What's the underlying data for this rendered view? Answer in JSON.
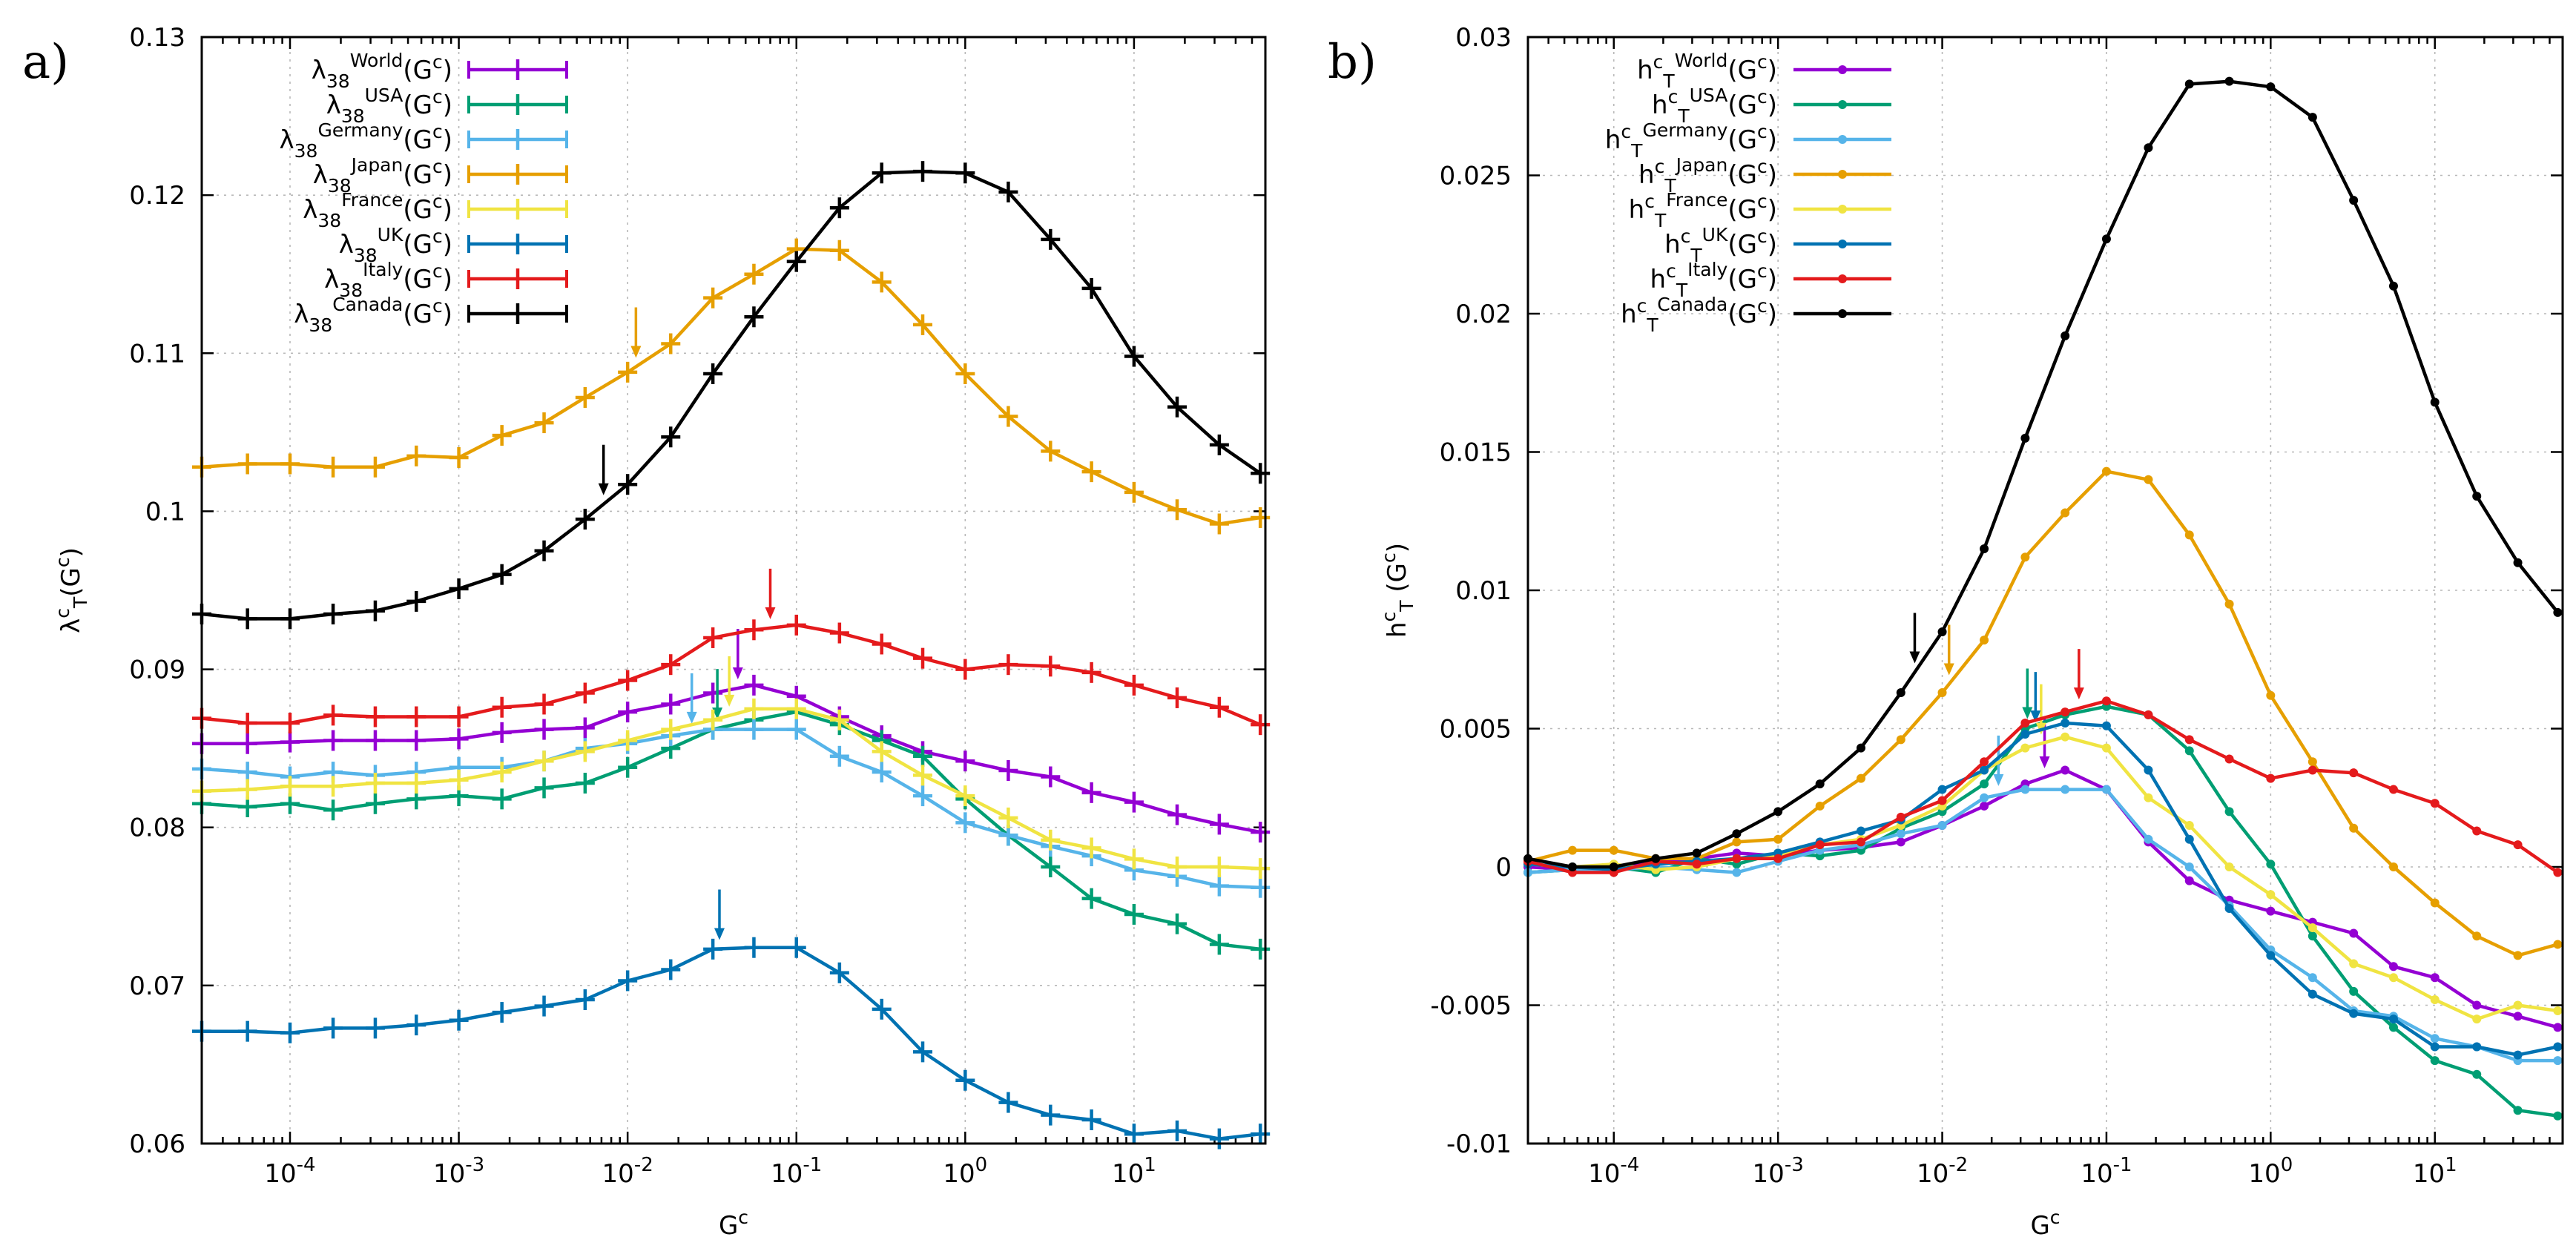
{
  "chart_data": [
    {
      "panel_label": "a)",
      "type": "line",
      "xlabel": "G",
      "xlabel_sup": "c",
      "ylabel": "λ",
      "ylabel_sup": "c",
      "ylabel_sub": "T",
      "ylabel_tail": "(G",
      "ylabel_tail_sup": "c",
      "ylabel_close": ")",
      "x_scale": "log",
      "xlim": [
        3e-05,
        60
      ],
      "ylim": [
        0.06,
        0.13
      ],
      "yticks": [
        "0.06",
        "0.07",
        "0.08",
        "0.09",
        "0.1",
        "0.11",
        "0.12",
        "0.13"
      ],
      "xticks": [
        {
          "base": "10",
          "exp": "-4"
        },
        {
          "base": "10",
          "exp": "-3"
        },
        {
          "base": "10",
          "exp": "-2"
        },
        {
          "base": "10",
          "exp": "-1"
        },
        {
          "base": "10",
          "exp": "0"
        },
        {
          "base": "10",
          "exp": "1"
        }
      ],
      "marker": "plus",
      "x": [
        3e-05,
        5.6e-05,
        0.0001,
        0.00018,
        0.00032,
        0.00056,
        0.001,
        0.0018,
        0.0032,
        0.0056,
        0.01,
        0.018,
        0.032,
        0.056,
        0.1,
        0.18,
        0.32,
        0.56,
        1,
        1.8,
        3.2,
        5.6,
        10,
        18,
        32,
        56
      ],
      "series": [
        {
          "name": "World",
          "color": "#9400d3",
          "legend": {
            "pre": "λ",
            "sub": "38",
            "sup": "World",
            "tail": "(G",
            "tail_sup": "c",
            "close": ")"
          },
          "values": [
            0.0853,
            0.0853,
            0.0854,
            0.0855,
            0.0855,
            0.0855,
            0.0856,
            0.086,
            0.0862,
            0.0863,
            0.0873,
            0.0878,
            0.0885,
            0.089,
            0.0883,
            0.087,
            0.0858,
            0.0848,
            0.0842,
            0.0836,
            0.0832,
            0.0822,
            0.0816,
            0.0808,
            0.0802,
            0.0797
          ],
          "arrow_x": 0.045
        },
        {
          "name": "USA",
          "color": "#009e73",
          "legend": {
            "pre": "λ",
            "sub": "38",
            "sup": "USA",
            "tail": "(G",
            "tail_sup": "c",
            "close": ")"
          },
          "values": [
            0.0815,
            0.0813,
            0.0815,
            0.0811,
            0.0815,
            0.0818,
            0.082,
            0.0818,
            0.0825,
            0.0828,
            0.0838,
            0.085,
            0.0862,
            0.0868,
            0.0873,
            0.0865,
            0.0855,
            0.0845,
            0.0818,
            0.0795,
            0.0775,
            0.0755,
            0.0745,
            0.0739,
            0.0726,
            0.0723
          ],
          "arrow_x": 0.034
        },
        {
          "name": "Germany",
          "color": "#56b4e9",
          "legend": {
            "pre": "λ",
            "sub": "38",
            "sup": "Germany",
            "tail": "(G",
            "tail_sup": "c",
            "close": ")"
          },
          "values": [
            0.0837,
            0.0835,
            0.0832,
            0.0835,
            0.0833,
            0.0835,
            0.0838,
            0.0838,
            0.0842,
            0.085,
            0.0853,
            0.0858,
            0.0862,
            0.0862,
            0.0862,
            0.0845,
            0.0835,
            0.082,
            0.0803,
            0.0795,
            0.0788,
            0.0782,
            0.0773,
            0.0769,
            0.0763,
            0.0762
          ],
          "arrow_x": 0.024
        },
        {
          "name": "Japan",
          "color": "#e69f00",
          "legend": {
            "pre": "λ",
            "sub": "38",
            "sup": "Japan",
            "tail": "(G",
            "tail_sup": "c",
            "close": ")"
          },
          "values": [
            0.1028,
            0.103,
            0.103,
            0.1028,
            0.1028,
            0.1035,
            0.1034,
            0.1048,
            0.1056,
            0.1072,
            0.1088,
            0.1106,
            0.1135,
            0.115,
            0.1166,
            0.1165,
            0.1145,
            0.1118,
            0.1087,
            0.106,
            0.1038,
            0.1025,
            0.1012,
            0.1001,
            0.0992,
            0.0996
          ],
          "arrow_x": 0.0112
        },
        {
          "name": "France",
          "color": "#f0e442",
          "legend": {
            "pre": "λ",
            "sub": "38",
            "sup": "France",
            "tail": "(G",
            "tail_sup": "c",
            "close": ")"
          },
          "values": [
            0.0823,
            0.0824,
            0.0826,
            0.0826,
            0.0828,
            0.0828,
            0.083,
            0.0835,
            0.0842,
            0.0848,
            0.0855,
            0.0862,
            0.0868,
            0.0875,
            0.0875,
            0.0868,
            0.0848,
            0.0833,
            0.082,
            0.0806,
            0.0792,
            0.0787,
            0.078,
            0.0775,
            0.0775,
            0.0774
          ],
          "arrow_x": 0.04
        },
        {
          "name": "UK",
          "color": "#0072b2",
          "legend": {
            "pre": "λ",
            "sub": "38",
            "sup": "UK",
            "tail": "(G",
            "tail_sup": "c",
            "close": ")"
          },
          "values": [
            0.0671,
            0.0671,
            0.067,
            0.0673,
            0.0673,
            0.0675,
            0.0678,
            0.0683,
            0.0687,
            0.0691,
            0.0703,
            0.071,
            0.0723,
            0.0724,
            0.0724,
            0.0708,
            0.0685,
            0.0658,
            0.064,
            0.0626,
            0.0618,
            0.0615,
            0.0606,
            0.0608,
            0.0603,
            0.0606
          ],
          "arrow_x": 0.035
        },
        {
          "name": "Italy",
          "color": "#e41a1c",
          "legend": {
            "pre": "λ",
            "sub": "38",
            "sup": "Italy",
            "tail": "(G",
            "tail_sup": "c",
            "close": ")"
          },
          "values": [
            0.0869,
            0.0866,
            0.0866,
            0.0871,
            0.087,
            0.087,
            0.087,
            0.0876,
            0.0878,
            0.0885,
            0.0893,
            0.0903,
            0.092,
            0.0925,
            0.0928,
            0.0923,
            0.0916,
            0.0907,
            0.09,
            0.0903,
            0.0902,
            0.0898,
            0.089,
            0.0882,
            0.0876,
            0.0865
          ],
          "arrow_x": 0.07
        },
        {
          "name": "Canada",
          "color": "#000000",
          "legend": {
            "pre": "λ",
            "sub": "38",
            "sup": "Canada",
            "tail": "(G",
            "tail_sup": "c",
            "close": ")"
          },
          "values": [
            0.0935,
            0.0932,
            0.0932,
            0.0935,
            0.0937,
            0.0943,
            0.0951,
            0.096,
            0.0975,
            0.0995,
            0.1017,
            0.1047,
            0.1087,
            0.1123,
            0.1158,
            0.1192,
            0.1214,
            0.1215,
            0.1214,
            0.1202,
            0.1172,
            0.1141,
            0.1098,
            0.1066,
            0.1042,
            0.1024
          ],
          "arrow_x": 0.0072
        }
      ]
    },
    {
      "panel_label": "b)",
      "type": "line",
      "xlabel": "G",
      "xlabel_sup": "c",
      "ylabel": "h",
      "ylabel_sup": "c",
      "ylabel_sub": "T",
      "ylabel_tail": " (G",
      "ylabel_tail_sup": "c",
      "ylabel_close": ")",
      "x_scale": "log",
      "xlim": [
        3e-05,
        60
      ],
      "ylim": [
        -0.01,
        0.03
      ],
      "yticks": [
        "-0.01",
        "-0.005",
        "0",
        "0.005",
        "0.01",
        "0.015",
        "0.02",
        "0.025",
        "0.03"
      ],
      "xticks": [
        {
          "base": "10",
          "exp": "-4"
        },
        {
          "base": "10",
          "exp": "-3"
        },
        {
          "base": "10",
          "exp": "-2"
        },
        {
          "base": "10",
          "exp": "-1"
        },
        {
          "base": "10",
          "exp": "0"
        },
        {
          "base": "10",
          "exp": "1"
        }
      ],
      "marker": "dot",
      "x": [
        3e-05,
        5.6e-05,
        0.0001,
        0.00018,
        0.00032,
        0.00056,
        0.001,
        0.0018,
        0.0032,
        0.0056,
        0.01,
        0.018,
        0.032,
        0.056,
        0.1,
        0.18,
        0.32,
        0.56,
        1,
        1.8,
        3.2,
        5.6,
        10,
        18,
        32,
        56
      ],
      "series": [
        {
          "name": "World",
          "color": "#9400d3",
          "legend": {
            "pre": "h",
            "sup": "c",
            "sub": "T",
            "sup2": "World",
            "tail": "(G",
            "tail_sup": "c",
            "close": ")"
          },
          "values": [
            0.0,
            -0.0001,
            0.0,
            0.0002,
            0.0003,
            0.0005,
            0.0004,
            0.0006,
            0.0007,
            0.0009,
            0.0015,
            0.0022,
            0.003,
            0.0035,
            0.0028,
            0.0009,
            -0.0005,
            -0.0012,
            -0.0016,
            -0.002,
            -0.0024,
            -0.0036,
            -0.004,
            -0.005,
            -0.0054,
            -0.0058
          ],
          "arrow_x": 0.042
        },
        {
          "name": "USA",
          "color": "#009e73",
          "legend": {
            "pre": "h",
            "sup": "c",
            "sub": "T",
            "sup2": "USA",
            "tail": "(G",
            "tail_sup": "c",
            "close": ")"
          },
          "values": [
            -0.0002,
            -0.0001,
            0.0,
            -0.0002,
            0.0003,
            0.0001,
            0.0005,
            0.0004,
            0.0006,
            0.0014,
            0.002,
            0.003,
            0.005,
            0.0055,
            0.0058,
            0.0055,
            0.0042,
            0.002,
            0.0001,
            -0.0025,
            -0.0045,
            -0.0058,
            -0.007,
            -0.0075,
            -0.0088,
            -0.009
          ],
          "arrow_x": 0.033
        },
        {
          "name": "Germany",
          "color": "#56b4e9",
          "legend": {
            "pre": "h",
            "sup": "c",
            "sub": "T",
            "sup2": "Germany",
            "tail": "(G",
            "tail_sup": "c",
            "close": ")"
          },
          "values": [
            -0.0002,
            -0.0001,
            -0.0001,
            0.0,
            -0.0001,
            -0.0002,
            0.0002,
            0.0006,
            0.0008,
            0.0012,
            0.0015,
            0.0025,
            0.0028,
            0.0028,
            0.0028,
            0.001,
            0.0,
            -0.0014,
            -0.003,
            -0.004,
            -0.0052,
            -0.0054,
            -0.0062,
            -0.0065,
            -0.007,
            -0.007
          ],
          "arrow_x": 0.022
        },
        {
          "name": "Japan",
          "color": "#e69f00",
          "legend": {
            "pre": "h",
            "sup": "c",
            "sub": "T",
            "sup2": "Japan",
            "tail": "(G",
            "tail_sup": "c",
            "close": ")"
          },
          "values": [
            0.0002,
            0.0006,
            0.0006,
            0.0003,
            0.0003,
            0.0009,
            0.001,
            0.0022,
            0.0032,
            0.0046,
            0.0063,
            0.0082,
            0.0112,
            0.0128,
            0.0143,
            0.014,
            0.012,
            0.0095,
            0.0062,
            0.0038,
            0.0014,
            0.0,
            -0.0013,
            -0.0025,
            -0.0032,
            -0.0028
          ],
          "arrow_x": 0.011
        },
        {
          "name": "France",
          "color": "#f0e442",
          "legend": {
            "pre": "h",
            "sup": "c",
            "sub": "T",
            "sup2": "France",
            "tail": "(G",
            "tail_sup": "c",
            "close": ")"
          },
          "values": [
            0.0001,
            0.0,
            0.0001,
            -0.0001,
            0.0,
            0.0003,
            0.0004,
            0.0008,
            0.001,
            0.0015,
            0.0022,
            0.0035,
            0.0043,
            0.0047,
            0.0043,
            0.0025,
            0.0015,
            0.0,
            -0.001,
            -0.0022,
            -0.0035,
            -0.004,
            -0.0048,
            -0.0055,
            -0.005,
            -0.0052
          ],
          "arrow_x": 0.04
        },
        {
          "name": "UK",
          "color": "#0072b2",
          "legend": {
            "pre": "h",
            "sup": "c",
            "sub": "T",
            "sup2": "UK",
            "tail": "(G",
            "tail_sup": "c",
            "close": ")"
          },
          "values": [
            0.0001,
            0.0,
            -0.0001,
            0.0001,
            0.0002,
            0.0003,
            0.0005,
            0.0009,
            0.0013,
            0.0017,
            0.0028,
            0.0035,
            0.0048,
            0.0052,
            0.0051,
            0.0035,
            0.001,
            -0.0015,
            -0.0032,
            -0.0046,
            -0.0053,
            -0.0055,
            -0.0065,
            -0.0065,
            -0.0068,
            -0.0065
          ],
          "arrow_x": 0.037
        },
        {
          "name": "Italy",
          "color": "#e41a1c",
          "legend": {
            "pre": "h",
            "sup": "c",
            "sub": "T",
            "sup2": "Italy",
            "tail": "(G",
            "tail_sup": "c",
            "close": ")"
          },
          "values": [
            0.0002,
            -0.0002,
            -0.0002,
            0.0002,
            0.0001,
            0.0003,
            0.0003,
            0.0008,
            0.0009,
            0.0018,
            0.0024,
            0.0038,
            0.0052,
            0.0056,
            0.006,
            0.0055,
            0.0046,
            0.0039,
            0.0032,
            0.0035,
            0.0034,
            0.0028,
            0.0023,
            0.0013,
            0.0008,
            -0.0002
          ],
          "arrow_x": 0.068
        },
        {
          "name": "Canada",
          "color": "#000000",
          "legend": {
            "pre": "h",
            "sup": "c",
            "sub": "T",
            "sup2": "Canada",
            "tail": "(G",
            "tail_sup": "c",
            "close": ")"
          },
          "values": [
            0.0003,
            0.0,
            0.0,
            0.0003,
            0.0005,
            0.0012,
            0.002,
            0.003,
            0.0043,
            0.0063,
            0.0085,
            0.0115,
            0.0155,
            0.0192,
            0.0227,
            0.026,
            0.0283,
            0.0284,
            0.0282,
            0.0271,
            0.0241,
            0.021,
            0.0168,
            0.0134,
            0.011,
            0.0092
          ],
          "arrow_x": 0.0068
        }
      ]
    }
  ]
}
